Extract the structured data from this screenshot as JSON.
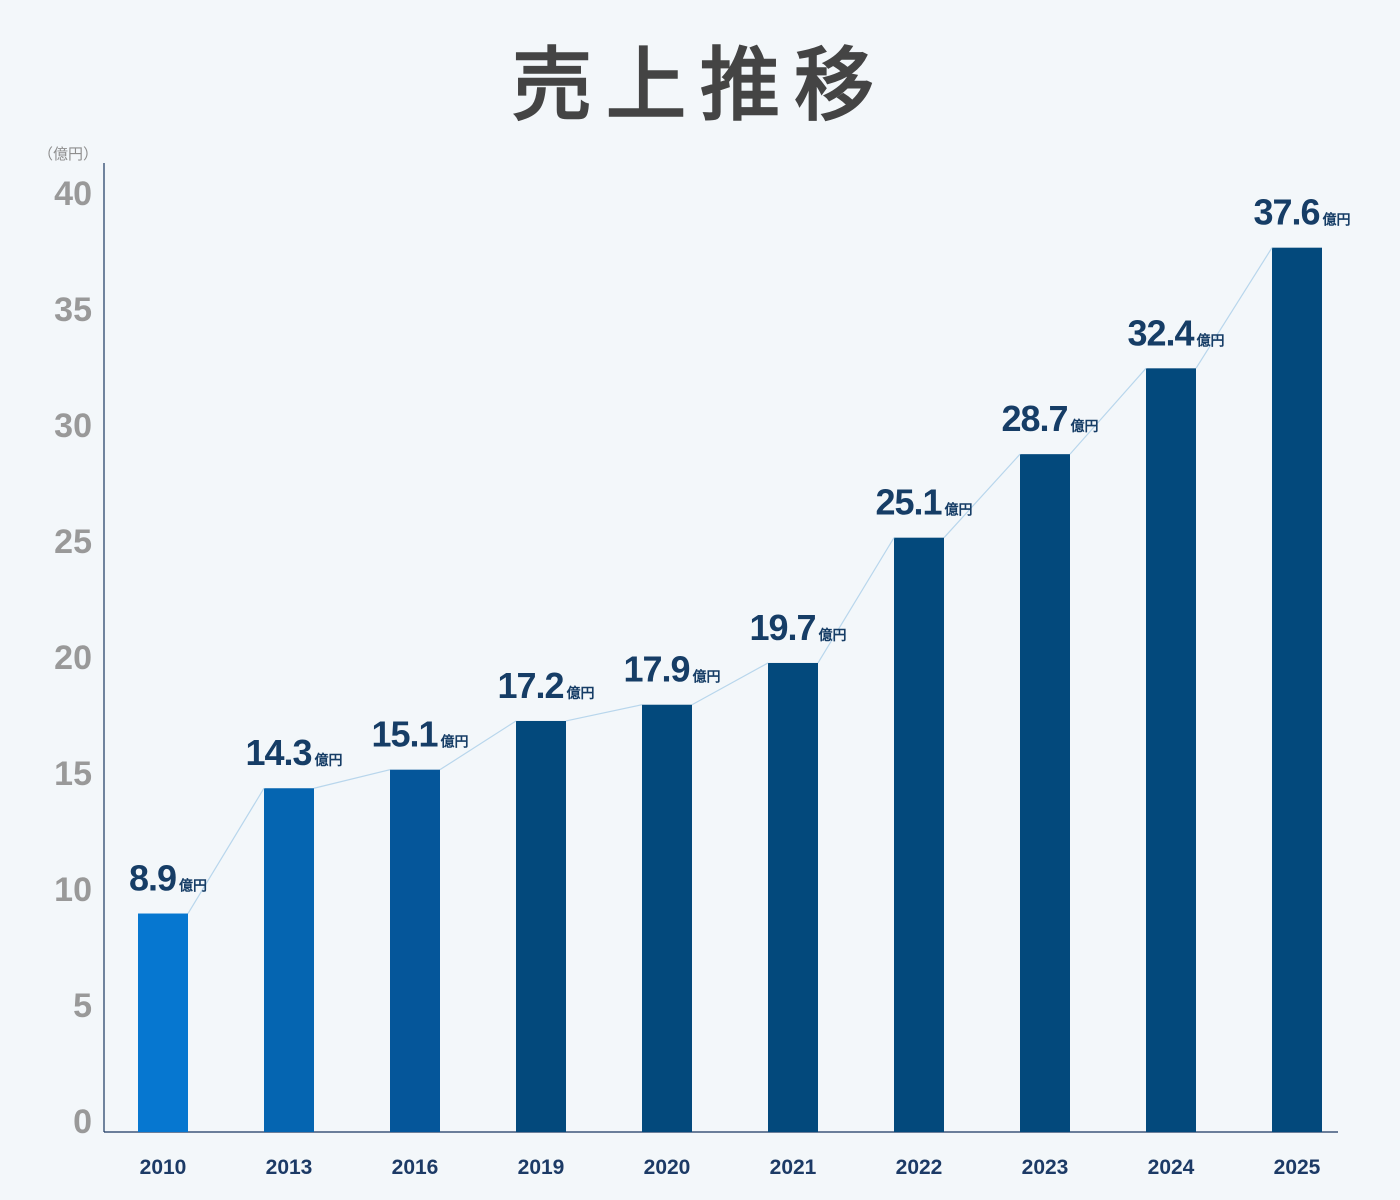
{
  "chart_data": {
    "type": "bar",
    "title": "売上推移",
    "unit_label": "（億円）",
    "value_suffix": "億円",
    "categories": [
      "2010",
      "2013",
      "2016",
      "2019",
      "2020",
      "2021",
      "2022",
      "2023",
      "2024",
      "2025"
    ],
    "values": [
      8.9,
      14.3,
      15.1,
      17.2,
      17.9,
      19.7,
      25.1,
      28.7,
      32.4,
      37.6
    ],
    "data_labels": [
      "8.9",
      "14.3",
      "15.1",
      "17.2",
      "17.9",
      "19.7",
      "25.1",
      "28.7",
      "32.4",
      "37.6"
    ],
    "yticks": [
      0,
      5,
      10,
      15,
      20,
      25,
      30,
      35,
      40
    ],
    "ylim": [
      0,
      41
    ],
    "grid": false,
    "trend_line": true,
    "colors": {
      "bar_colors": [
        "#0677d0",
        "#0565b1",
        "#05569a",
        "#03497c",
        "#03497c",
        "#03497c",
        "#03497c",
        "#03497c",
        "#03497c",
        "#03497c"
      ],
      "trend_line": "#b8d6ec",
      "axis": "#1a3760"
    }
  }
}
